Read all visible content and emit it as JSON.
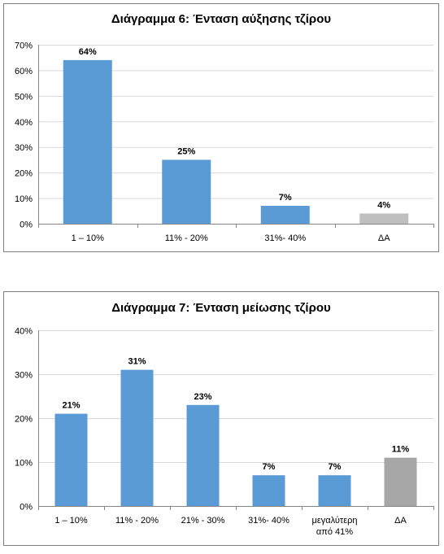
{
  "chart_data": [
    {
      "type": "bar",
      "title": "Διάγραμμα 6:  Ένταση αύξησης τζίρου",
      "categories": [
        "1 – 10%",
        "11% - 20%",
        "31%- 40%",
        "ΔΑ"
      ],
      "values": [
        64,
        25,
        7,
        4
      ],
      "data_labels": [
        "64%",
        "25%",
        "7%",
        "4%"
      ],
      "ylim": [
        0,
        70
      ],
      "yticks": [
        0,
        10,
        20,
        30,
        40,
        50,
        60,
        70
      ],
      "ytick_labels": [
        "0%",
        "10%",
        "20%",
        "30%",
        "40%",
        "50%",
        "60%",
        "70%"
      ],
      "grid": true,
      "colors": [
        "#5b9bd5",
        "#5b9bd5",
        "#5b9bd5",
        "#bfbfbf"
      ]
    },
    {
      "type": "bar",
      "title": "Διάγραμμα 7: Ένταση μείωσης τζίρου",
      "categories": [
        "1 – 10%",
        "11% - 20%",
        "21% - 30%",
        "31%- 40%",
        "μεγαλύτερη από 41%",
        "ΔΑ"
      ],
      "category_lines": [
        [
          "1 – 10%"
        ],
        [
          "11% - 20%"
        ],
        [
          "21% - 30%"
        ],
        [
          "31%- 40%"
        ],
        [
          "μεγαλύτερη",
          "από 41%"
        ],
        [
          "ΔΑ"
        ]
      ],
      "values": [
        21,
        31,
        23,
        7,
        7,
        11
      ],
      "data_labels": [
        "21%",
        "31%",
        "23%",
        "7%",
        "7%",
        "11%"
      ],
      "ylim": [
        0,
        40
      ],
      "yticks": [
        0,
        10,
        20,
        30,
        40
      ],
      "ytick_labels": [
        "0%",
        "10%",
        "20%",
        "30%",
        "40%"
      ],
      "grid": true,
      "colors": [
        "#5b9bd5",
        "#5b9bd5",
        "#5b9bd5",
        "#5b9bd5",
        "#5b9bd5",
        "#a6a6a6"
      ]
    }
  ]
}
